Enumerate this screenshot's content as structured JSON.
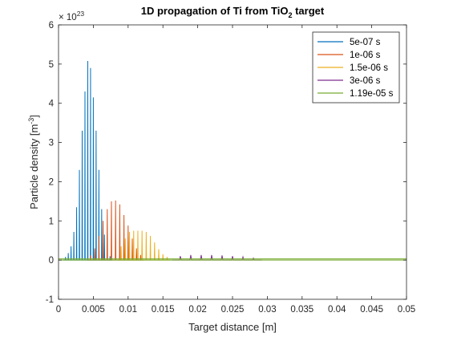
{
  "chart_data": {
    "type": "line",
    "title": "1D propagation of Ti from TiO2 target",
    "title_main": "1D propagation of Ti from TiO",
    "title_sub": "2",
    "title_tail": " target",
    "xlabel": "Target distance [m]",
    "ylabel_main": "Particle density [m",
    "ylabel_sup": "-3",
    "ylabel_tail": "]",
    "y_exponent_base": "× 10",
    "y_exponent_power": "23",
    "xlim": [
      0,
      0.05
    ],
    "ylim": [
      -1,
      6
    ],
    "xticks": [
      0,
      0.005,
      0.01,
      0.015,
      0.02,
      0.025,
      0.03,
      0.035,
      0.04,
      0.045,
      0.05
    ],
    "xtick_labels": [
      "0",
      "0.005",
      "0.01",
      "0.015",
      "0.02",
      "0.025",
      "0.03",
      "0.035",
      "0.04",
      "0.045",
      "0.05"
    ],
    "yticks": [
      -1,
      0,
      1,
      2,
      3,
      4,
      5,
      6
    ],
    "ytick_labels": [
      "-1",
      "0",
      "1",
      "2",
      "3",
      "4",
      "5",
      "6"
    ],
    "grid": false,
    "legend_position": "top-right",
    "series": [
      {
        "name": "5e-07 s",
        "color": "#0072BD",
        "peaks": [
          [
            0.001,
            0.08
          ],
          [
            0.0014,
            0.18
          ],
          [
            0.0018,
            0.35
          ],
          [
            0.0022,
            0.72
          ],
          [
            0.0026,
            1.35
          ],
          [
            0.003,
            2.3
          ],
          [
            0.0034,
            3.3
          ],
          [
            0.0038,
            4.3
          ],
          [
            0.0042,
            5.08
          ],
          [
            0.0046,
            4.9
          ],
          [
            0.005,
            4.15
          ],
          [
            0.0054,
            3.3
          ],
          [
            0.0058,
            2.3
          ],
          [
            0.0062,
            1.3
          ],
          [
            0.0066,
            0.65
          ],
          [
            0.007,
            0.25
          ],
          [
            0.0074,
            0.1
          ]
        ]
      },
      {
        "name": "1e-06 s",
        "color": "#D95319",
        "peaks": [
          [
            0.0046,
            0.12
          ],
          [
            0.0052,
            0.3
          ],
          [
            0.0058,
            0.62
          ],
          [
            0.0064,
            1.0
          ],
          [
            0.007,
            1.3
          ],
          [
            0.0076,
            1.5
          ],
          [
            0.0082,
            1.52
          ],
          [
            0.0088,
            1.42
          ],
          [
            0.0094,
            1.15
          ],
          [
            0.01,
            0.88
          ],
          [
            0.0106,
            0.55
          ],
          [
            0.0112,
            0.3
          ],
          [
            0.0118,
            0.13
          ]
        ]
      },
      {
        "name": "1.5e-06 s",
        "color": "#EDB120",
        "peaks": [
          [
            0.009,
            0.35
          ],
          [
            0.0096,
            0.55
          ],
          [
            0.0102,
            0.72
          ],
          [
            0.0108,
            0.75
          ],
          [
            0.0114,
            0.75
          ],
          [
            0.012,
            0.75
          ],
          [
            0.0126,
            0.72
          ],
          [
            0.0132,
            0.62
          ],
          [
            0.0138,
            0.45
          ],
          [
            0.0144,
            0.28
          ],
          [
            0.015,
            0.15
          ],
          [
            0.0156,
            0.08
          ]
        ]
      },
      {
        "name": "3e-06 s",
        "color": "#7E2F8E",
        "peaks": [
          [
            0.0175,
            0.1
          ],
          [
            0.019,
            0.13
          ],
          [
            0.0205,
            0.13
          ],
          [
            0.022,
            0.13
          ],
          [
            0.0235,
            0.12
          ],
          [
            0.025,
            0.1
          ],
          [
            0.0265,
            0.08
          ],
          [
            0.028,
            0.05
          ]
        ]
      },
      {
        "name": "1.19e-05 s",
        "color": "#77AC30",
        "baseline": [
          [
            0,
            0.03
          ],
          [
            0.05,
            0.03
          ]
        ]
      }
    ]
  }
}
